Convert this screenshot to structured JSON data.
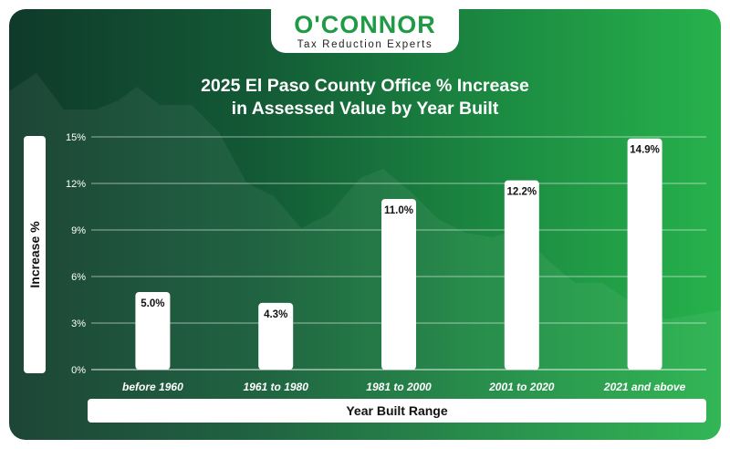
{
  "logo": {
    "name": "O'CONNOR",
    "tagline": "Tax Reduction Experts"
  },
  "colors": {
    "bar": "#ffffff",
    "brand_green": "#1f9a45",
    "background_dark": "#0f3a2a",
    "background_light": "#27b24c"
  },
  "chart_data": {
    "type": "bar",
    "title_line1": "2025 El Paso County Office % Increase",
    "title_line2": "in Assessed Value by Year Built",
    "xlabel": "Year Built Range",
    "ylabel": "Increase %",
    "categories": [
      "before 1960",
      "1961 to 1980",
      "1981 to 2000",
      "2001 to 2020",
      "2021 and above"
    ],
    "values": [
      5.0,
      4.3,
      11.0,
      12.2,
      14.9
    ],
    "data_labels": [
      "5.0%",
      "4.3%",
      "11.0%",
      "12.2%",
      "14.9%"
    ],
    "yticks": [
      0,
      3,
      6,
      9,
      12,
      15
    ],
    "ytick_labels": [
      "0%",
      "3%",
      "6%",
      "9%",
      "12%",
      "15%"
    ],
    "ylim": [
      0,
      15
    ],
    "grid": true,
    "legend": "none"
  }
}
